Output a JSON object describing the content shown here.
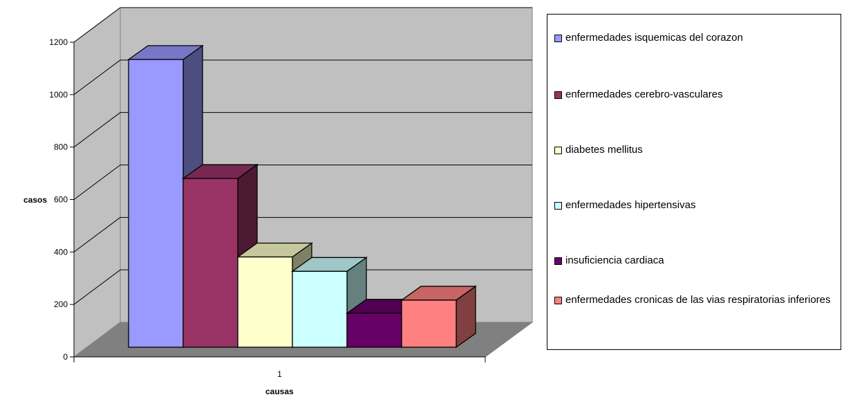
{
  "chart_data": {
    "type": "bar",
    "categories": [
      "1"
    ],
    "series": [
      {
        "name": "enfermedades isquemicas del corazon",
        "values": [
          1100
        ],
        "color": "#9999ff"
      },
      {
        "name": "enfermedades cerebro-vasculares",
        "values": [
          645
        ],
        "color": "#993366"
      },
      {
        "name": "diabetes mellitus",
        "values": [
          345
        ],
        "color": "#ffffcc"
      },
      {
        "name": "enfermedades hipertensivas",
        "values": [
          290
        ],
        "color": "#ccffff"
      },
      {
        "name": "insuficiencia cardiaca",
        "values": [
          130
        ],
        "color": "#660066"
      },
      {
        "name": "enfermedades cronicas de las vias respiratorias inferiores",
        "values": [
          180
        ],
        "color": "#ff8080"
      }
    ],
    "xlabel": "causas",
    "ylabel": "casos",
    "ylim": [
      0,
      1200
    ],
    "yticks": [
      "0",
      "200",
      "400",
      "600",
      "800",
      "1000",
      "1200"
    ],
    "grid": true,
    "legend_position": "right",
    "style": "3d-column",
    "wall_color": "#c0c0c0",
    "floor_color": "#808080"
  }
}
